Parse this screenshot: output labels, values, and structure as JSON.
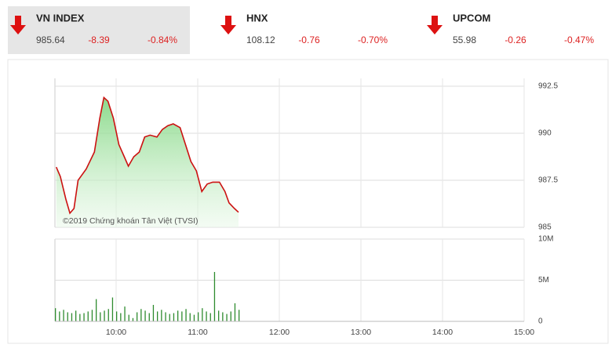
{
  "indices": [
    {
      "name": "VN INDEX",
      "value": "985.64",
      "change": "-8.39",
      "percent": "-0.84%"
    },
    {
      "name": "HNX",
      "value": "108.12",
      "change": "-0.76",
      "percent": "-0.70%"
    },
    {
      "name": "UPCOM",
      "value": "55.98",
      "change": "-0.26",
      "percent": "-0.47%"
    }
  ],
  "chart_data": [
    {
      "type": "line",
      "annotation": "©2019 Chứng khoán Tân Việt (TVSI)",
      "x": [
        556,
        559,
        563,
        566,
        569,
        572,
        578,
        584,
        588,
        591,
        594,
        598,
        602,
        606,
        609,
        613,
        617,
        621,
        625,
        630,
        634,
        638,
        642,
        647,
        651,
        655,
        659,
        663,
        667,
        671,
        676,
        680,
        683,
        687,
        690
      ],
      "series": [
        {
          "name": "VN INDEX",
          "color": "#cc1111",
          "values": [
            988.2,
            987.7,
            986.5,
            985.75,
            986.0,
            987.5,
            988.1,
            989.0,
            990.8,
            991.9,
            991.7,
            990.8,
            989.4,
            988.75,
            988.25,
            988.75,
            989.0,
            989.8,
            989.9,
            989.8,
            990.2,
            990.4,
            990.5,
            990.3,
            989.4,
            988.5,
            988.0,
            986.9,
            987.3,
            987.4,
            987.4,
            986.9,
            986.3,
            986.0,
            985.8
          ]
        }
      ],
      "xlim": [
        555,
        900
      ],
      "ylim": [
        985,
        992.5
      ],
      "yticks": [
        985,
        987.5,
        990,
        992.5
      ],
      "grid": true
    },
    {
      "type": "bar",
      "x": [
        555,
        558,
        561,
        564,
        567,
        570,
        573,
        576,
        579,
        582,
        585,
        588,
        591,
        594,
        597,
        600,
        603,
        606,
        609,
        612,
        615,
        618,
        621,
        624,
        627,
        630,
        633,
        636,
        639,
        642,
        645,
        648,
        651,
        654,
        657,
        660,
        663,
        666,
        669,
        672,
        675,
        678,
        681,
        684,
        687,
        690
      ],
      "values": [
        1600000,
        1200000,
        1400000,
        1100000,
        1000000,
        1300000,
        900000,
        1000000,
        1200000,
        1400000,
        2700000,
        1100000,
        1300000,
        1500000,
        2900000,
        1200000,
        1000000,
        1800000,
        800000,
        400000,
        1100000,
        1500000,
        1300000,
        1000000,
        2000000,
        1200000,
        1400000,
        1100000,
        900000,
        1000000,
        1300000,
        1200000,
        1500000,
        1000000,
        800000,
        1100000,
        1600000,
        1200000,
        1000000,
        6000000,
        1300000,
        1100000,
        900000,
        1200000,
        2200000,
        1400000
      ],
      "color": "#2e8b2e",
      "xlim": [
        555,
        900
      ],
      "xticks": [
        {
          "value": 600,
          "label": "10:00"
        },
        {
          "value": 660,
          "label": "11:00"
        },
        {
          "value": 720,
          "label": "12:00"
        },
        {
          "value": 780,
          "label": "13:00"
        },
        {
          "value": 840,
          "label": "14:00"
        },
        {
          "value": 900,
          "label": "15:00"
        }
      ],
      "ylim": [
        0,
        10000000
      ],
      "yticks": [
        0,
        {
          "value": 5000000,
          "label": "5M"
        },
        {
          "value": 10000000,
          "label": "10M"
        }
      ],
      "grid": true
    }
  ]
}
